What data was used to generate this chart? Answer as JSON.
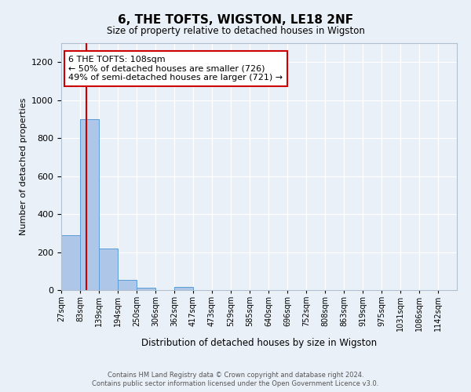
{
  "title": "6, THE TOFTS, WIGSTON, LE18 2NF",
  "subtitle": "Size of property relative to detached houses in Wigston",
  "xlabel": "Distribution of detached houses by size in Wigston",
  "ylabel": "Number of detached properties",
  "bar_color": "#aec6e8",
  "bar_edge_color": "#5b9bd5",
  "marker_color": "#cc0000",
  "marker_value_bin": 1,
  "categories": [
    "27sqm",
    "83sqm",
    "139sqm",
    "194sqm",
    "250sqm",
    "306sqm",
    "362sqm",
    "417sqm",
    "473sqm",
    "529sqm",
    "585sqm",
    "640sqm",
    "696sqm",
    "752sqm",
    "808sqm",
    "863sqm",
    "919sqm",
    "975sqm",
    "1031sqm",
    "1086sqm",
    "1142sqm"
  ],
  "values": [
    290,
    900,
    220,
    55,
    12,
    0,
    15,
    0,
    0,
    0,
    0,
    0,
    0,
    0,
    0,
    0,
    0,
    0,
    0,
    0,
    0
  ],
  "ylim": [
    0,
    1300
  ],
  "yticks": [
    0,
    200,
    400,
    600,
    800,
    1000,
    1200
  ],
  "annotation_text": "6 THE TOFTS: 108sqm\n← 50% of detached houses are smaller (726)\n49% of semi-detached houses are larger (721) →",
  "annotation_box_color": "#ffffff",
  "annotation_box_edge_color": "#cc0000",
  "footer_line1": "Contains HM Land Registry data © Crown copyright and database right 2024.",
  "footer_line2": "Contains public sector information licensed under the Open Government Licence v3.0.",
  "background_color": "#eaf0f8",
  "plot_background_color": "#eaf0f8",
  "red_line_x": 1.35
}
